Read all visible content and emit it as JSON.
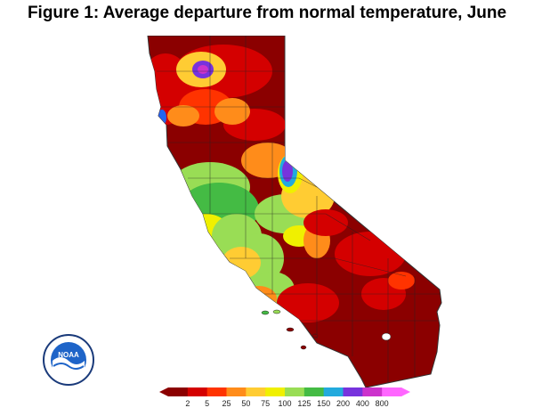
{
  "figure": {
    "title": "Figure 1: Average departure from normal temperature, June"
  },
  "map": {
    "region": "California",
    "color_scale": {
      "ticks": [
        "2",
        "5",
        "25",
        "50",
        "75",
        "100",
        "125",
        "150",
        "200",
        "400",
        "800"
      ],
      "colors": [
        "#8b0000",
        "#d40000",
        "#ff3300",
        "#ff8c1a",
        "#ffcc33",
        "#f0f000",
        "#99dd55",
        "#44bb44",
        "#22aadd",
        "#7733dd",
        "#cc33cc",
        "#ff66ff"
      ]
    },
    "palette": {
      "very_dry": "#8b0000",
      "dry": "#d40000",
      "orange": "#ff8c1a",
      "yellow": "#f0f000",
      "light_green": "#99dd55",
      "green": "#44bb44",
      "blue": "#2266ee",
      "purple": "#7733dd"
    }
  },
  "logo": {
    "icon": "noaa-logo-icon",
    "text": "NOAA"
  }
}
